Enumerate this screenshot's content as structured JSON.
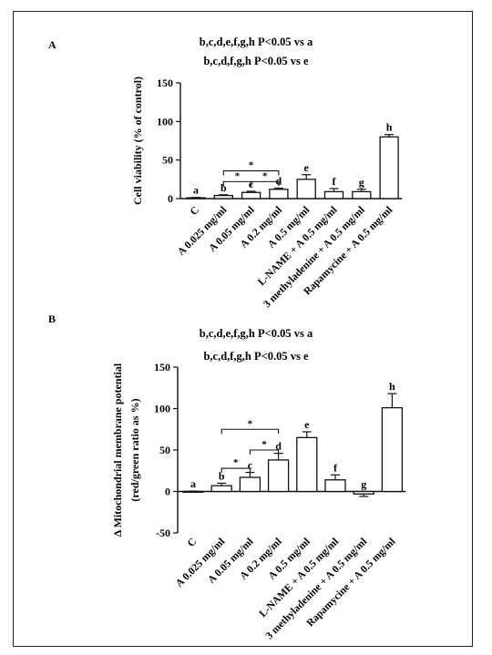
{
  "chart_data": [
    {
      "type": "bar",
      "panel_label": "A",
      "annotation_lines": [
        "b,c,d,e,f,g,h P<0.05 vs a",
        "b,c,d,f,g,h P<0.05 vs e"
      ],
      "ylabel": "Cell viability (% of control)",
      "xlabel": "",
      "ylim": [
        0,
        150
      ],
      "yticks": [
        0,
        50,
        100,
        150
      ],
      "grid": false,
      "categories": [
        "C",
        "A 0.025 mg/ml",
        "A 0.05 mg/ml",
        "A 0.2 mg/ml",
        "A 0.5 mg/ml",
        "L-NAME + A 0.5 mg/ml",
        "3 methyladenine + A 0.5 mg/ml",
        "Rapamycine + A 0.5 mg/ml"
      ],
      "values": [
        1,
        4,
        8,
        12,
        25,
        9,
        9,
        80
      ],
      "errors": [
        0.5,
        1,
        1.5,
        1.5,
        6,
        4,
        3,
        3
      ],
      "bar_letters": [
        "a",
        "b",
        "c",
        "d",
        "e",
        "f",
        "g",
        "h"
      ],
      "significance": [
        {
          "from": 1,
          "to": 2,
          "label": "*"
        },
        {
          "from": 2,
          "to": 3,
          "label": "*"
        },
        {
          "from": 1,
          "to": 3,
          "label": "*"
        }
      ]
    },
    {
      "type": "bar",
      "panel_label": "B",
      "annotation_lines": [
        "b,c,d,e,f,g,h P<0.05 vs a",
        "b,c,d,f,g,h P<0.05 vs e"
      ],
      "ylabel_lines": [
        "Δ Mitochondrial membrane potential",
        "(red/green ratio as %)"
      ],
      "xlabel": "",
      "ylim": [
        -50,
        150
      ],
      "yticks": [
        -50,
        0,
        50,
        100,
        150
      ],
      "grid": false,
      "categories": [
        "C",
        "A 0.025 mg/ml",
        "A 0.05 mg/ml",
        "A 0.2 mg/ml",
        "A 0.5 mg/ml",
        "L-NAME + A 0.5 mg/ml",
        "3 methyladenine + A 0.5 mg/ml",
        "Rapamycine + A 0.5 mg/ml"
      ],
      "values": [
        0,
        7,
        17,
        38,
        65,
        14,
        -3,
        101
      ],
      "errors": [
        0.5,
        3,
        6,
        8,
        7,
        6,
        3,
        17
      ],
      "bar_letters": [
        "a",
        "b",
        "c",
        "d",
        "e",
        "f",
        "g",
        "h"
      ],
      "significance": [
        {
          "from": 1,
          "to": 2,
          "label": "*"
        },
        {
          "from": 2,
          "to": 3,
          "label": "*"
        },
        {
          "from": 1,
          "to": 3,
          "label": "*"
        }
      ]
    }
  ]
}
